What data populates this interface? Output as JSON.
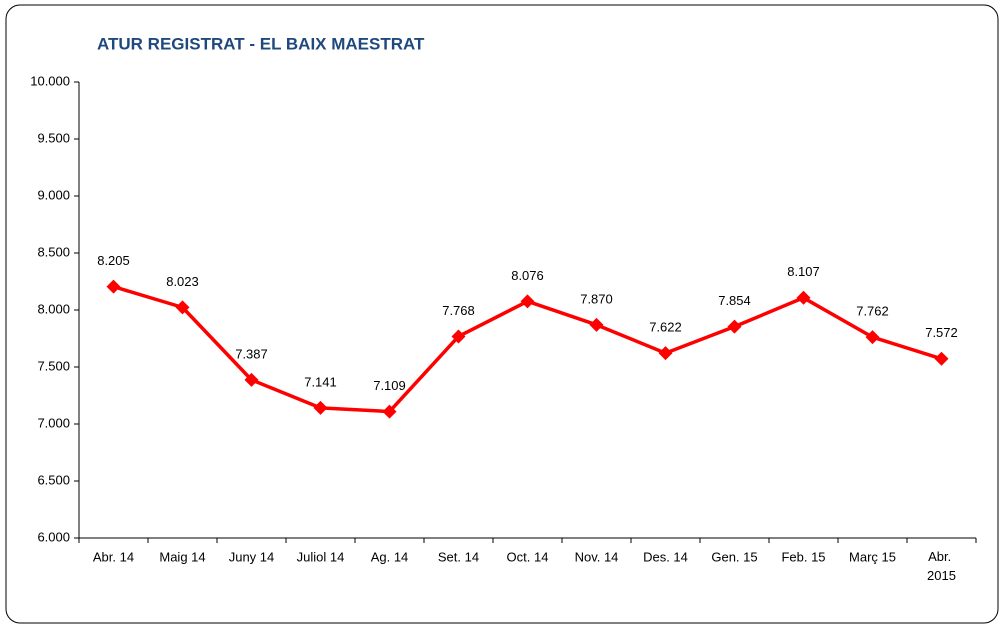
{
  "chart_data": {
    "type": "line",
    "title": "ATUR REGISTRAT - EL BAIX MAESTRAT",
    "categories": [
      "Abr. 14",
      "Maig 14",
      "Juny 14",
      "Juliol 14",
      "Ag. 14",
      "Set. 14",
      "Oct. 14",
      "Nov. 14",
      "Des. 14",
      "Gen. 15",
      "Feb. 15",
      "Març 15",
      "Abr. 2015"
    ],
    "series": [
      {
        "color": "#ff0000",
        "values": [
          8205,
          8023,
          7387,
          7141,
          7109,
          7768,
          8076,
          7870,
          7622,
          7854,
          8107,
          7762,
          7572
        ],
        "value_labels": [
          "8.205",
          "8.023",
          "7.387",
          "7.141",
          "7.109",
          "7.768",
          "8.076",
          "7.870",
          "7.622",
          "7.854",
          "8.107",
          "7.762",
          "7.572"
        ]
      }
    ],
    "ylim": [
      6000,
      10000
    ],
    "yticks": [
      {
        "value": 6000,
        "label": "6.000"
      },
      {
        "value": 6500,
        "label": "6.500"
      },
      {
        "value": 7000,
        "label": "7.000"
      },
      {
        "value": 7500,
        "label": "7.500"
      },
      {
        "value": 8000,
        "label": "8.000"
      },
      {
        "value": 8500,
        "label": "8.500"
      },
      {
        "value": 9000,
        "label": "9.000"
      },
      {
        "value": 9500,
        "label": "9.500"
      },
      {
        "value": 10000,
        "label": "10.000"
      }
    ],
    "grid": false
  }
}
